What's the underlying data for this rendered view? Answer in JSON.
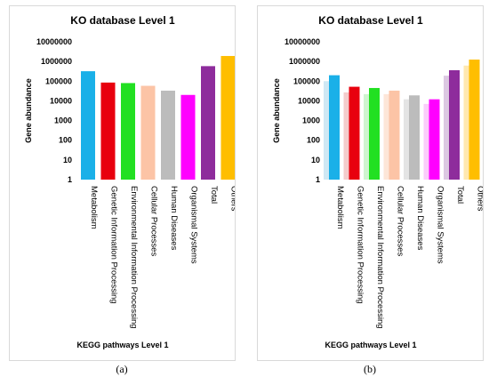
{
  "captions": [
    "(a)",
    "(b)"
  ],
  "chart_data": [
    {
      "type": "bar",
      "title": "KO database Level 1",
      "xlabel": "KEGG pathways Level 1",
      "ylabel": "Gene abundance",
      "yscale": "log",
      "ylim": [
        1,
        10000000
      ],
      "yticks": [
        "1",
        "10",
        "100",
        "1000",
        "10000",
        "100000",
        "1000000",
        "10000000"
      ],
      "grid": false,
      "categories": [
        "Metabolism",
        "Genetic Information Processing",
        "Environmental Information Processing",
        "Cellular Processes",
        "Human Diseases",
        "Organismal Systems",
        "Total",
        "Others"
      ],
      "series": [
        {
          "values": [
            320000,
            85000,
            80000,
            58000,
            33000,
            20000,
            580000,
            1900000
          ],
          "colors": [
            "#1ab0e8",
            "#e8000e",
            "#22e022",
            "#fcc4a6",
            "#bcbcbc",
            "#ff00ff",
            "#8e2c9c",
            "#ffbe00"
          ]
        }
      ]
    },
    {
      "type": "bar",
      "title": "KO database Level 1",
      "xlabel": "KEGG pathways Level 1",
      "ylabel": "Gene abundance",
      "yscale": "log",
      "ylim": [
        1,
        10000000
      ],
      "yticks": [
        "1",
        "10",
        "100",
        "1000",
        "10000",
        "100000",
        "1000000",
        "10000000"
      ],
      "grid": false,
      "categories": [
        "Metabolism",
        "Genetic Information Processing",
        "Environmental Information Processing",
        "Cellular Processes",
        "Human Diseases",
        "Organismal Systems",
        "Total",
        "Others"
      ],
      "series": [
        {
          "values": [
            100000,
            27000,
            22000,
            22000,
            12000,
            7000,
            190000,
            620000
          ],
          "colors": [
            "#cfe8f4",
            "#f4cccc",
            "#cff4cf",
            "#fde6d8",
            "#e4e4e4",
            "#fbcdfb",
            "#dcc8e2",
            "#ffe8b0"
          ]
        },
        {
          "values": [
            200000,
            52000,
            45000,
            33000,
            19000,
            12000,
            360000,
            1250000
          ],
          "colors": [
            "#1ab0e8",
            "#e8000e",
            "#22e022",
            "#fcc4a6",
            "#bcbcbc",
            "#ff00ff",
            "#8e2c9c",
            "#ffbe00"
          ]
        }
      ]
    }
  ]
}
